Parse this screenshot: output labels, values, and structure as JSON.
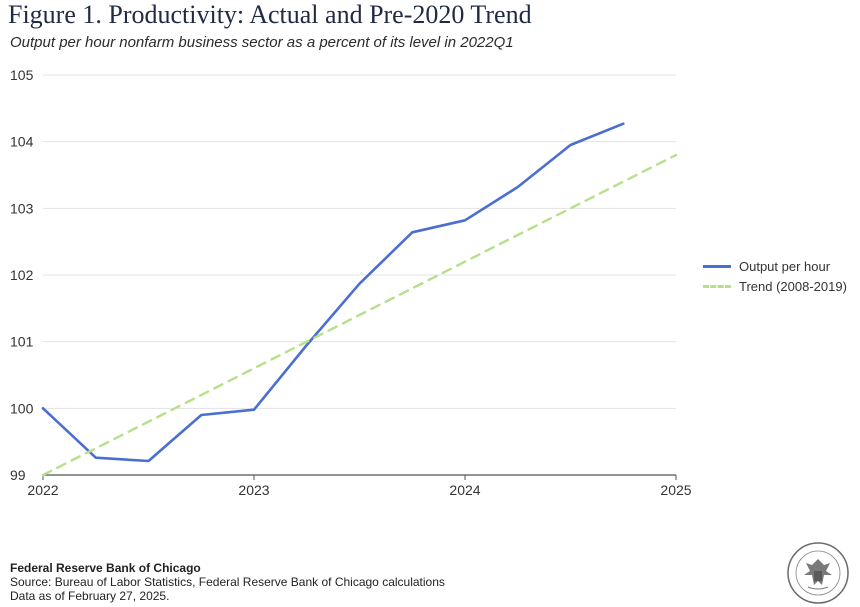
{
  "title": "Figure 1. Productivity: Actual and Pre-2020 Trend",
  "subtitle": "Output per hour nonfarm business sector as a percent of its level in 2022Q1",
  "footer": {
    "org": "Federal Reserve Bank of Chicago",
    "source": "Source: Bureau of Labor Statistics, Federal Reserve Bank of Chicago calculations",
    "date": "Data as of February 27, 2025."
  },
  "seal": {
    "text": "FEDERAL RESERVE BANK OF CHICAGO SEVENTH DISTRICT"
  },
  "colors": {
    "actual": "#4a6fd1",
    "trend": "#b7e08a",
    "grid": "#e3e3e3",
    "text": "#333333"
  },
  "chart_data": {
    "type": "line",
    "title": "Figure 1. Productivity: Actual and Pre-2020 Trend",
    "subtitle": "Output per hour nonfarm business sector as a percent of its level in 2022Q1",
    "xlim": [
      2022,
      2025
    ],
    "ylim": [
      99,
      105
    ],
    "x_ticks": [
      2022,
      2023,
      2024,
      2025
    ],
    "x_tick_labels": [
      "2022",
      "2023",
      "2024",
      "2025"
    ],
    "y_ticks": [
      99,
      100,
      101,
      102,
      103,
      104,
      105
    ],
    "y_tick_labels": [
      "99",
      "100",
      "101",
      "102",
      "103",
      "104",
      "105"
    ],
    "grid": true,
    "legend_position": "right",
    "series": [
      {
        "name": "Output per hour",
        "style": "solid",
        "x": [
          2022.0,
          2022.25,
          2022.5,
          2022.75,
          2023.0,
          2023.25,
          2023.5,
          2023.75,
          2024.0,
          2024.25,
          2024.5,
          2024.75
        ],
        "y": [
          100.0,
          99.26,
          99.21,
          99.9,
          99.98,
          100.95,
          101.87,
          102.64,
          102.82,
          103.32,
          103.95,
          104.27
        ]
      },
      {
        "name": "Trend (2008-2019)",
        "style": "dashed",
        "x": [
          2022.0,
          2025.0
        ],
        "y": [
          99.0,
          103.8
        ]
      }
    ]
  }
}
